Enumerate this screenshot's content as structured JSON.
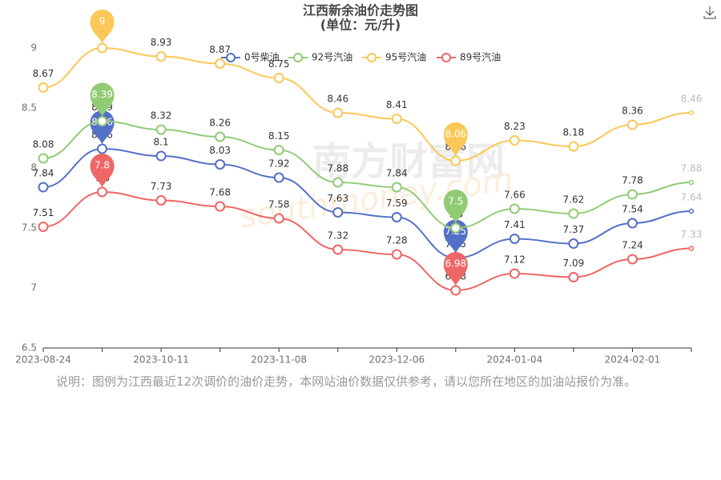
{
  "chart_data": {
    "type": "line",
    "title": "江西新余油价走势图",
    "subtitle": "(单位：元/升)",
    "categories": [
      "2023-08-24",
      null,
      "2023-10-11",
      null,
      "2023-11-08",
      null,
      "2023-12-06",
      null,
      "2024-01-04",
      null,
      "2024-02-01",
      null
    ],
    "series": [
      {
        "name": "0号柴油",
        "color": "#5470c6",
        "values": [
          7.84,
          8.16,
          8.1,
          8.03,
          7.92,
          7.63,
          7.59,
          7.25,
          7.41,
          7.37,
          7.54,
          7.64
        ]
      },
      {
        "name": "92号汽油",
        "color": "#91cc75",
        "values": [
          8.08,
          8.39,
          8.32,
          8.26,
          8.15,
          7.88,
          7.84,
          7.5,
          7.66,
          7.62,
          7.78,
          7.88
        ]
      },
      {
        "name": "95号汽油",
        "color": "#fac858",
        "values": [
          8.67,
          9,
          8.93,
          8.87,
          8.75,
          8.46,
          8.41,
          8.06,
          8.23,
          8.18,
          8.36,
          8.46
        ]
      },
      {
        "name": "89号汽油",
        "color": "#ee6666",
        "values": [
          7.51,
          7.8,
          7.73,
          7.68,
          7.58,
          7.32,
          7.28,
          6.98,
          7.12,
          7.09,
          7.24,
          7.33
        ]
      }
    ],
    "ylim": [
      6.5,
      9
    ],
    "yticks": [
      6.5,
      7,
      7.5,
      8,
      8.5,
      9
    ],
    "grid": false,
    "smooth": true,
    "legend": "top",
    "watermark": [
      "南方财富网",
      "southmoney.com"
    ]
  },
  "note": "说明：图例为江西最近12次调价的油价走势，本网站油价数据仅供参考，请以您所在地区的加油站报价为准。"
}
